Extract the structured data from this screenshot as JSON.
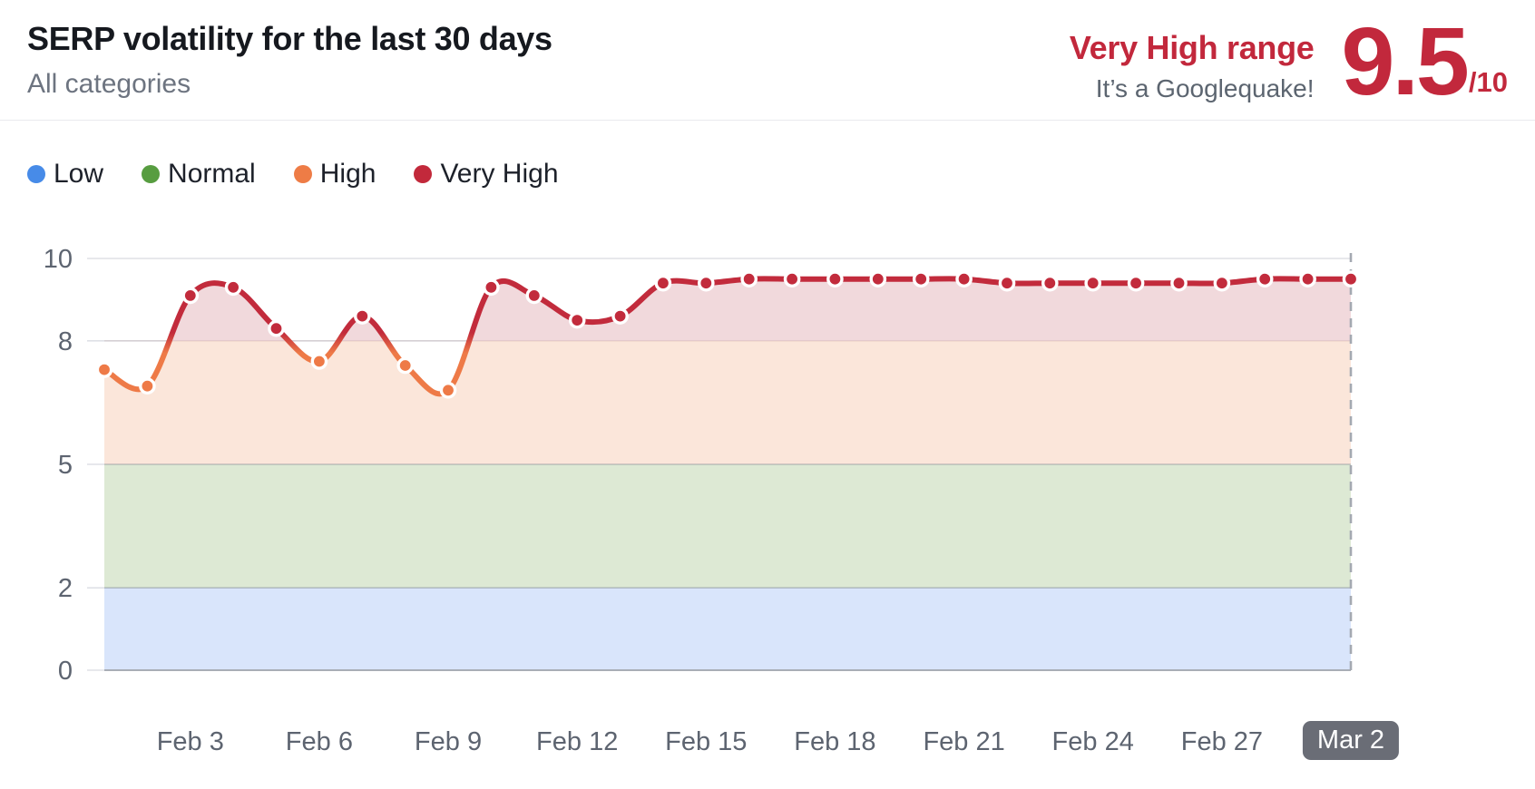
{
  "header": {
    "title": "SERP volatility for the last 30 days",
    "subtitle": "All categories"
  },
  "score": {
    "range_label": "Very High range",
    "subtitle": "It’s a Googlequake!",
    "value": "9.5",
    "denominator": "/10",
    "color": "#c2283c"
  },
  "legend": {
    "items": [
      {
        "label": "Low",
        "color": "#478be8"
      },
      {
        "label": "Normal",
        "color": "#579d40"
      },
      {
        "label": "High",
        "color": "#ee7c46"
      },
      {
        "label": "Very High",
        "color": "#c2293b"
      }
    ]
  },
  "chart_data": {
    "type": "line",
    "title": "SERP volatility for the last 30 days",
    "x": [
      "Feb 1",
      "Feb 2",
      "Feb 3",
      "Feb 4",
      "Feb 5",
      "Feb 6",
      "Feb 7",
      "Feb 8",
      "Feb 9",
      "Feb 10",
      "Feb 11",
      "Feb 12",
      "Feb 13",
      "Feb 14",
      "Feb 15",
      "Feb 16",
      "Feb 17",
      "Feb 18",
      "Feb 19",
      "Feb 20",
      "Feb 21",
      "Feb 22",
      "Feb 23",
      "Feb 24",
      "Feb 25",
      "Feb 26",
      "Feb 27",
      "Feb 28",
      "Mar 1",
      "Mar 2"
    ],
    "values": [
      7.3,
      6.9,
      9.1,
      9.3,
      8.3,
      7.5,
      8.6,
      7.4,
      6.8,
      9.3,
      9.1,
      8.5,
      8.6,
      9.4,
      9.4,
      9.5,
      9.5,
      9.5,
      9.5,
      9.5,
      9.5,
      9.4,
      9.4,
      9.4,
      9.4,
      9.4,
      9.4,
      9.5,
      9.5,
      9.5
    ],
    "ylim": [
      0,
      10
    ],
    "yticks": [
      0,
      2,
      5,
      8,
      10
    ],
    "xtick_labels": [
      "Feb 3",
      "Feb 6",
      "Feb 9",
      "Feb 12",
      "Feb 15",
      "Feb 18",
      "Feb 21",
      "Feb 24",
      "Feb 27",
      "Mar 2"
    ],
    "xtick_first_index": 2,
    "xtick_every": 3,
    "highlighted_xtick": "Mar 2",
    "threshold": 8,
    "grid": true,
    "legend_position": "top-left",
    "colors": {
      "line_low": "#ee7a47",
      "line_high": "#c22b3c",
      "dot_stroke": "#ffffff",
      "band_low": "#d9e5fb",
      "band_normal": "#dde9d4",
      "band_high": "#fbe6da",
      "band_very_high": "#f1d9dc",
      "gridline": "#dfe1e6",
      "axis_text": "#5d6470",
      "dashed_edge": "#a4a9b1"
    },
    "bands": [
      {
        "label": "Low",
        "from": 0,
        "to": 2,
        "color": "#d9e5fb"
      },
      {
        "label": "Normal",
        "from": 2,
        "to": 5,
        "color": "#dde9d4"
      },
      {
        "label": "High",
        "from": 5,
        "to": 8,
        "color": "#fbe6da"
      },
      {
        "label": "Very High",
        "from": 8,
        "to": 10,
        "color": "#f1d9dc"
      }
    ]
  }
}
